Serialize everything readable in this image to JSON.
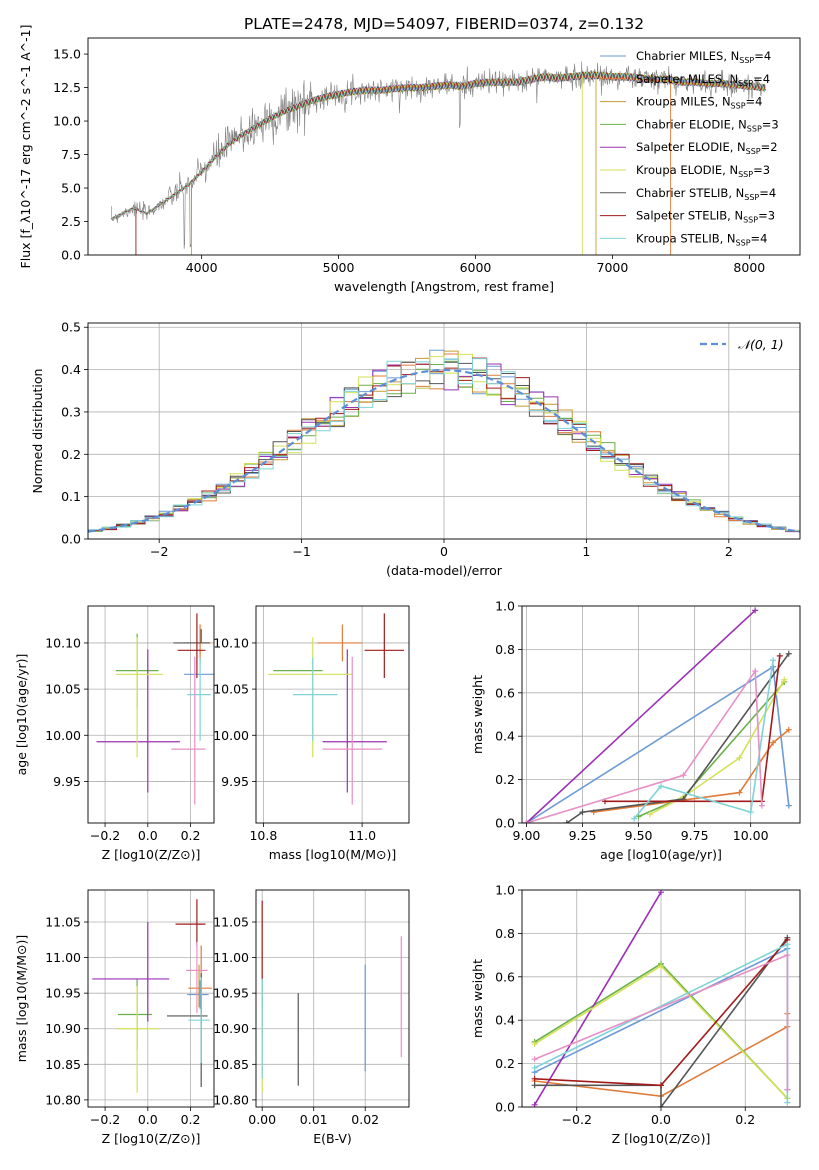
{
  "figure": {
    "title": "PLATE=2478, MJD=54097, FIBERID=0374, z=0.132"
  },
  "chart_data": [
    {
      "panel": "spectrum",
      "type": "line",
      "title": "PLATE=2478, MJD=54097, FIBERID=0374, z=0.132",
      "xlabel": "wavelength [Angstrom, rest frame]",
      "ylabel": "Flux [f_λ10^-17 erg cm^-2 s^-1 A^-1]",
      "xlim": [
        3170,
        8370
      ],
      "ylim": [
        0,
        16.2
      ],
      "xticks": [
        4000,
        5000,
        6000,
        7000,
        8000
      ],
      "yticks": [
        0.0,
        2.5,
        5.0,
        7.5,
        10.0,
        12.5,
        15.0
      ],
      "grid": false,
      "legend": "top-right",
      "data_series": {
        "name": "data",
        "color": "#808080",
        "x": [
          3340,
          3500,
          3600,
          3700,
          3800,
          3900,
          4000,
          4100,
          4200,
          4300,
          4400,
          4500,
          4600,
          4700,
          4800,
          4900,
          5000,
          5100,
          5200,
          5300,
          5400,
          5500,
          5600,
          5700,
          5800,
          5900,
          6000,
          6100,
          6200,
          6300,
          6400,
          6500,
          6600,
          6700,
          6800,
          6900,
          7000,
          7100,
          7200,
          7300,
          7400,
          7500,
          7600,
          7700,
          7800,
          7900,
          8000,
          8100
        ],
        "y": [
          2.7,
          3.5,
          3.1,
          3.8,
          4.5,
          5.2,
          6.2,
          7.3,
          8.3,
          9.0,
          9.6,
          10.2,
          10.7,
          11.1,
          11.5,
          11.8,
          12.0,
          12.2,
          12.3,
          12.3,
          12.4,
          12.5,
          12.5,
          12.6,
          12.7,
          12.6,
          12.8,
          12.9,
          12.9,
          12.9,
          13.1,
          13.3,
          13.2,
          13.3,
          13.4,
          13.4,
          13.3,
          13.3,
          13.2,
          13.1,
          13.1,
          12.9,
          12.9,
          12.8,
          12.8,
          12.7,
          12.6,
          12.5
        ]
      },
      "series": [
        {
          "name": "Chabrier MILES, N_SSP=4",
          "color": "#6c9bd6"
        },
        {
          "name": "Salpeter MILES, N_SSP=4",
          "color": "#e07b39"
        },
        {
          "name": "Kroupa MILES, N_SSP=4",
          "color": "#c79a34"
        },
        {
          "name": "Chabrier ELODIE, N_SSP=3",
          "color": "#6ab04c"
        },
        {
          "name": "Salpeter ELODIE, N_SSP=2",
          "color": "#9b30b5"
        },
        {
          "name": "Kroupa ELODIE, N_SSP=3",
          "color": "#d4e157"
        },
        {
          "name": "Chabrier STELIB, N_SSP=4",
          "color": "#555555"
        },
        {
          "name": "Salpeter STELIB, N_SSP=3",
          "color": "#a11b1b"
        },
        {
          "name": "Kroupa STELIB, N_SSP=4",
          "color": "#7fd3d8"
        }
      ]
    },
    {
      "panel": "residual-histogram",
      "type": "bar",
      "xlabel": "(data-model)/error",
      "ylabel": "Normed distribution",
      "xlim": [
        -2.5,
        2.5
      ],
      "ylim": [
        0,
        0.51
      ],
      "xticks": [
        -2,
        -1,
        0,
        1,
        2
      ],
      "yticks": [
        0.0,
        0.1,
        0.2,
        0.3,
        0.4,
        0.5
      ],
      "grid": true,
      "legend": "top-right",
      "gauss_label": "𝒩(0, 1)",
      "bin_width": 0.1
    },
    {
      "panel": "age-vs-Z",
      "type": "scatter",
      "xlabel": "Z [log10(Z/Z⊙)]",
      "ylabel": "age  [log10(age/yr)]",
      "xlim": [
        -0.28,
        0.31
      ],
      "ylim": [
        9.905,
        10.14
      ],
      "xticks": [
        -0.2,
        0.0,
        0.2
      ],
      "yticks": [
        9.95,
        10.0,
        10.05,
        10.1
      ],
      "grid": true,
      "points": [
        {
          "x": 0.24,
          "y": 10.066,
          "xerr": [
            0.07,
            0.07
          ],
          "yerr": [
            0.0,
            0.0
          ],
          "color": "#6c9bd6"
        },
        {
          "x": 0.245,
          "y": 10.1,
          "xerr": [
            0.08,
            0.05
          ],
          "yerr": [
            0.02,
            0.02
          ],
          "color": "#e07b39"
        },
        {
          "x": 0.23,
          "y": 10.1,
          "xerr": [
            0.0,
            0.0
          ],
          "yerr": [
            0.0,
            0.0
          ],
          "color": "#c79a34"
        },
        {
          "x": -0.05,
          "y": 10.07,
          "xerr": [
            0.1,
            0.1
          ],
          "yerr": [
            0.04,
            0.04
          ],
          "color": "#6ab04c"
        },
        {
          "x": 0.0,
          "y": 9.993,
          "xerr": [
            0.24,
            0.15
          ],
          "yerr": [
            0.055,
            0.1
          ],
          "color": "#9b30b5"
        },
        {
          "x": -0.05,
          "y": 10.066,
          "xerr": [
            0.1,
            0.12
          ],
          "yerr": [
            0.09,
            0.04
          ],
          "color": "#d4e157"
        },
        {
          "x": 0.25,
          "y": 10.1,
          "xerr": [
            0.13,
            0.04
          ],
          "yerr": [
            0.0,
            0.015
          ],
          "color": "#555555"
        },
        {
          "x": 0.23,
          "y": 10.092,
          "xerr": [
            0.09,
            0.04
          ],
          "yerr": [
            0.03,
            0.04
          ],
          "color": "#a11b1b"
        },
        {
          "x": 0.245,
          "y": 10.044,
          "xerr": [
            0.06,
            0.05
          ],
          "yerr": [
            0.05,
            0.04
          ],
          "color": "#7fd3d8"
        },
        {
          "x": 0.22,
          "y": 9.985,
          "xerr": [
            0.11,
            0.05
          ],
          "yerr": [
            0.06,
            0.1
          ],
          "color": "#e88fc4"
        }
      ]
    },
    {
      "panel": "age-vs-mass",
      "type": "scatter",
      "xlabel": "mass [log10(M/M⊙)]",
      "ylabel": "",
      "xlim": [
        10.785,
        11.095
      ],
      "ylim": [
        9.905,
        10.14
      ],
      "xticks": [
        10.8,
        11.0
      ],
      "yticks": [
        9.95,
        10.0,
        10.05,
        10.1
      ],
      "grid": true,
      "points": [
        {
          "x": 10.945,
          "y": 10.066,
          "xerr": [
            0.0,
            0.0
          ],
          "yerr": [
            0.0,
            0.0
          ],
          "color": "#6c9bd6"
        },
        {
          "x": 10.96,
          "y": 10.1,
          "xerr": [
            0.05,
            0.04
          ],
          "yerr": [
            0.02,
            0.02
          ],
          "color": "#e07b39"
        },
        {
          "x": 10.955,
          "y": 10.1,
          "xerr": [
            0.0,
            0.0
          ],
          "yerr": [
            0.0,
            0.0
          ],
          "color": "#c79a34"
        },
        {
          "x": 10.92,
          "y": 10.07,
          "xerr": [
            0.1,
            0.0
          ],
          "yerr": [
            0.0,
            0.0
          ],
          "color": "#6ab04c"
        },
        {
          "x": 10.97,
          "y": 9.993,
          "xerr": [
            0.05,
            0.08
          ],
          "yerr": [
            0.055,
            0.1
          ],
          "color": "#9b30b5"
        },
        {
          "x": 10.9,
          "y": 10.066,
          "xerr": [
            0.09,
            0.08
          ],
          "yerr": [
            0.09,
            0.04
          ],
          "color": "#d4e157"
        },
        {
          "x": 10.92,
          "y": 10.1,
          "xerr": [
            0.0,
            0.0
          ],
          "yerr": [
            0.0,
            0.0
          ],
          "color": "#555555"
        },
        {
          "x": 11.045,
          "y": 10.092,
          "xerr": [
            0.04,
            0.04
          ],
          "yerr": [
            0.03,
            0.04
          ],
          "color": "#a11b1b"
        },
        {
          "x": 10.9,
          "y": 10.044,
          "xerr": [
            0.04,
            0.05
          ],
          "yerr": [
            0.05,
            0.04
          ],
          "color": "#7fd3d8"
        },
        {
          "x": 10.98,
          "y": 9.985,
          "xerr": [
            0.06,
            0.06
          ],
          "yerr": [
            0.06,
            0.1
          ],
          "color": "#e88fc4"
        }
      ]
    },
    {
      "panel": "weight-vs-age",
      "type": "line",
      "xlabel": "age  [log10(age/yr)]",
      "ylabel": "mass weight",
      "xlim": [
        8.98,
        10.22
      ],
      "ylim": [
        0,
        1.0
      ],
      "xticks": [
        9.0,
        9.25,
        9.5,
        9.75,
        10.0
      ],
      "yticks": [
        0.0,
        0.2,
        0.4,
        0.6,
        0.8,
        1.0
      ],
      "grid": true,
      "series": [
        {
          "color": "#6c9bd6",
          "x": [
            9.0,
            10.1,
            10.17
          ],
          "y": [
            0.0,
            0.72,
            0.08
          ]
        },
        {
          "color": "#e07b39",
          "x": [
            9.3,
            9.95,
            10.1,
            10.17
          ],
          "y": [
            0.05,
            0.14,
            0.37,
            0.43
          ]
        },
        {
          "color": "#6ab04c",
          "x": [
            9.5,
            9.7,
            10.15
          ],
          "y": [
            0.03,
            0.12,
            0.65
          ]
        },
        {
          "color": "#9b30b5",
          "x": [
            9.0,
            10.02
          ],
          "y": [
            0.0,
            0.98
          ]
        },
        {
          "color": "#d4e157",
          "x": [
            9.55,
            9.7,
            9.95,
            10.15
          ],
          "y": [
            0.04,
            0.12,
            0.3,
            0.66
          ]
        },
        {
          "color": "#555555",
          "x": [
            9.18,
            9.25,
            9.7,
            10.17
          ],
          "y": [
            0.0,
            0.05,
            0.11,
            0.78
          ]
        },
        {
          "color": "#a11b1b",
          "x": [
            9.35,
            10.05,
            10.13
          ],
          "y": [
            0.1,
            0.1,
            0.77
          ]
        },
        {
          "color": "#7fd3d8",
          "x": [
            9.48,
            9.6,
            10.0,
            10.1
          ],
          "y": [
            0.02,
            0.17,
            0.05,
            0.75
          ]
        },
        {
          "color": "#e88fc4",
          "x": [
            9.0,
            9.7,
            10.02,
            10.05
          ],
          "y": [
            0.0,
            0.22,
            0.7,
            0.08
          ]
        }
      ]
    },
    {
      "panel": "mass-vs-Z",
      "type": "scatter",
      "xlabel": "Z [log10(Z/Z⊙)]",
      "ylabel": "mass [log10(M/M⊙)]",
      "xlim": [
        -0.28,
        0.31
      ],
      "ylim": [
        10.79,
        11.095
      ],
      "xticks": [
        -0.2,
        0.0,
        0.2
      ],
      "yticks": [
        10.8,
        10.85,
        10.9,
        10.95,
        11.0,
        11.05
      ],
      "grid": true,
      "points": [
        {
          "x": 0.245,
          "y": 10.948,
          "xerr": [
            0.06,
            0.04
          ],
          "yerr": [
            0.02,
            0.02
          ],
          "color": "#6c9bd6"
        },
        {
          "x": 0.25,
          "y": 10.957,
          "xerr": [
            0.06,
            0.05
          ],
          "yerr": [
            0.05,
            0.06
          ],
          "color": "#e07b39"
        },
        {
          "x": 0.24,
          "y": 10.96,
          "xerr": [
            0.0,
            0.0
          ],
          "yerr": [
            0.03,
            0.03
          ],
          "color": "#c79a34"
        },
        {
          "x": -0.05,
          "y": 10.92,
          "xerr": [
            0.09,
            0.07
          ],
          "yerr": [
            0.05,
            0.05
          ],
          "color": "#6ab04c"
        },
        {
          "x": 0.0,
          "y": 10.97,
          "xerr": [
            0.26,
            0.1
          ],
          "yerr": [
            0.06,
            0.08
          ],
          "color": "#9b30b5"
        },
        {
          "x": -0.05,
          "y": 10.9,
          "xerr": [
            0.09,
            0.1
          ],
          "yerr": [
            0.09,
            0.06
          ],
          "color": "#d4e157"
        },
        {
          "x": 0.25,
          "y": 10.918,
          "xerr": [
            0.16,
            0.03
          ],
          "yerr": [
            0.1,
            0.06
          ],
          "color": "#555555"
        },
        {
          "x": 0.23,
          "y": 11.047,
          "xerr": [
            0.1,
            0.04
          ],
          "yerr": [
            0.03,
            0.035
          ],
          "color": "#a11b1b"
        },
        {
          "x": 0.25,
          "y": 10.912,
          "xerr": [
            0.06,
            0.04
          ],
          "yerr": [
            0.06,
            0.06
          ],
          "color": "#7fd3d8"
        },
        {
          "x": 0.23,
          "y": 10.982,
          "xerr": [
            0.05,
            0.05
          ],
          "yerr": [
            0.06,
            0.04
          ],
          "color": "#e88fc4"
        }
      ]
    },
    {
      "panel": "mass-vs-EBV",
      "type": "scatter",
      "xlabel": "E(B-V)",
      "ylabel": "",
      "xlim": [
        -0.0012,
        0.0285
      ],
      "ylim": [
        10.79,
        11.095
      ],
      "xticks": [
        0.0,
        0.01,
        0.02
      ],
      "yticks": [
        10.8,
        10.85,
        10.9,
        10.95,
        11.0,
        11.05
      ],
      "grid": true,
      "points": [
        {
          "x": 0.0,
          "y": 11.02,
          "xerr": [
            0.0,
            0.0
          ],
          "yerr": [
            0.05,
            0.06
          ],
          "color": "#a11b1b"
        },
        {
          "x": 0.0,
          "y": 10.92,
          "xerr": [
            0.0,
            0.0
          ],
          "yerr": [
            0.03,
            0.05
          ],
          "color": "#6ab04c"
        },
        {
          "x": 0.0,
          "y": 10.87,
          "xerr": [
            0.0,
            0.0
          ],
          "yerr": [
            0.06,
            0.06
          ],
          "color": "#d4e157"
        },
        {
          "x": 0.0,
          "y": 10.9,
          "xerr": [
            0.0,
            0.0
          ],
          "yerr": [
            0.07,
            0.07
          ],
          "color": "#7fd3d8"
        },
        {
          "x": 0.007,
          "y": 10.89,
          "xerr": [
            0.0,
            0.0
          ],
          "yerr": [
            0.07,
            0.06
          ],
          "color": "#555555"
        },
        {
          "x": 0.02,
          "y": 10.92,
          "xerr": [
            0.0,
            0.0
          ],
          "yerr": [
            0.08,
            0.07
          ],
          "color": "#6c9bd6"
        },
        {
          "x": 0.027,
          "y": 10.95,
          "xerr": [
            0.0,
            0.0
          ],
          "yerr": [
            0.09,
            0.08
          ],
          "color": "#e88fc4"
        }
      ]
    },
    {
      "panel": "weight-vs-Z",
      "type": "line",
      "xlabel": "Z [log10(Z/Z⊙)]",
      "ylabel": "mass weight",
      "xlim": [
        -0.33,
        0.33
      ],
      "ylim": [
        0,
        1.0
      ],
      "xticks": [
        -0.2,
        0.0,
        0.2
      ],
      "yticks": [
        0.0,
        0.2,
        0.4,
        0.6,
        0.8,
        1.0
      ],
      "grid": true,
      "series": [
        {
          "color": "#6c9bd6",
          "x": [
            -0.3,
            0.3,
            0.3
          ],
          "y": [
            0.16,
            0.73,
            0.08
          ]
        },
        {
          "color": "#e07b39",
          "x": [
            -0.3,
            0.0,
            0.3,
            0.3
          ],
          "y": [
            0.12,
            0.05,
            0.37,
            0.43
          ]
        },
        {
          "color": "#6ab04c",
          "x": [
            -0.3,
            0.0,
            0.3
          ],
          "y": [
            0.3,
            0.66,
            0.04
          ]
        },
        {
          "color": "#9b30b5",
          "x": [
            -0.3,
            0.0
          ],
          "y": [
            0.01,
            0.99
          ]
        },
        {
          "color": "#d4e157",
          "x": [
            -0.3,
            0.0,
            0.3
          ],
          "y": [
            0.29,
            0.65,
            0.04
          ]
        },
        {
          "color": "#555555",
          "x": [
            -0.3,
            0.0,
            0.0,
            0.3
          ],
          "y": [
            0.1,
            0.1,
            0.0,
            0.78
          ]
        },
        {
          "color": "#a11b1b",
          "x": [
            -0.3,
            0.0,
            0.3
          ],
          "y": [
            0.13,
            0.1,
            0.77
          ]
        },
        {
          "color": "#7fd3d8",
          "x": [
            -0.3,
            0.3,
            0.3
          ],
          "y": [
            0.18,
            0.75,
            0.02
          ]
        },
        {
          "color": "#e88fc4",
          "x": [
            -0.3,
            0.3,
            0.3
          ],
          "y": [
            0.22,
            0.7,
            0.08
          ]
        }
      ]
    }
  ]
}
